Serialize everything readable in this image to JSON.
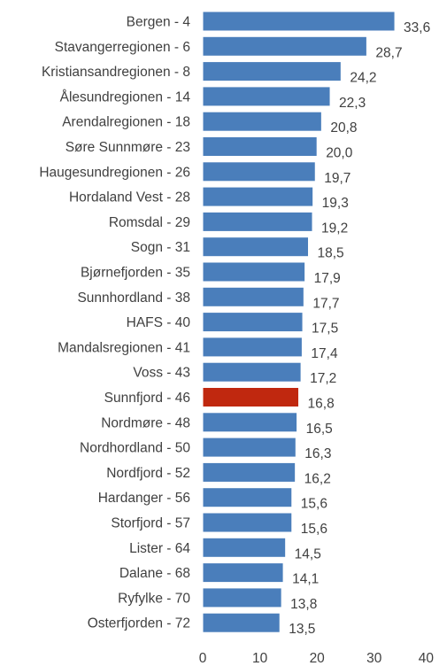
{
  "chart_data": {
    "type": "bar",
    "orientation": "horizontal",
    "title": "",
    "xlabel": "",
    "ylabel": "",
    "categories": [
      "Bergen - 4",
      "Stavangerregionen - 6",
      "Kristiansandregionen - 8",
      "Ålesundregionen - 14",
      "Arendalregionen - 18",
      "Søre Sunnmøre - 23",
      "Haugesundregionen - 26",
      "Hordaland Vest - 28",
      "Romsdal - 29",
      "Sogn - 31",
      "Bjørnefjorden - 35",
      "Sunnhordland - 38",
      "HAFS - 40",
      "Mandalsregionen - 41",
      "Voss - 43",
      "Sunnfjord - 46",
      "Nordmøre - 48",
      "Nordhordland - 50",
      "Nordfjord - 52",
      "Hardanger - 56",
      "Storfjord - 57",
      "Lister - 64",
      "Dalane - 68",
      "Ryfylke - 70",
      "Osterfjorden - 72"
    ],
    "values": [
      33.6,
      28.7,
      24.2,
      22.3,
      20.8,
      20.0,
      19.7,
      19.3,
      19.2,
      18.5,
      17.9,
      17.7,
      17.5,
      17.4,
      17.2,
      16.8,
      16.5,
      16.3,
      16.2,
      15.6,
      15.6,
      14.5,
      14.1,
      13.8,
      13.5
    ],
    "value_labels": [
      "33,6",
      "28,7",
      "24,2",
      "22,3",
      "20,8",
      "20,0",
      "19,7",
      "19,3",
      "19,2",
      "18,5",
      "17,9",
      "17,7",
      "17,5",
      "17,4",
      "17,2",
      "16,8",
      "16,5",
      "16,3",
      "16,2",
      "15,6",
      "15,6",
      "14,5",
      "14,1",
      "13,8",
      "13,5"
    ],
    "highlight_index": 15,
    "colors": {
      "bar": "#4a7ebb",
      "highlight": "#c0280f",
      "bar_edge": "#ffffff"
    },
    "xlim": [
      0,
      40
    ],
    "xticks": [
      0,
      10,
      20,
      30,
      40
    ],
    "grid": false,
    "legend": "none"
  }
}
